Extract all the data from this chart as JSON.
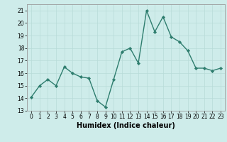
{
  "x": [
    0,
    1,
    2,
    3,
    4,
    5,
    6,
    7,
    8,
    9,
    10,
    11,
    12,
    13,
    14,
    15,
    16,
    17,
    18,
    19,
    20,
    21,
    22,
    23
  ],
  "y": [
    14.1,
    15.0,
    15.5,
    15.0,
    16.5,
    16.0,
    15.7,
    15.6,
    13.8,
    13.3,
    15.5,
    17.7,
    18.0,
    16.8,
    21.0,
    19.3,
    20.5,
    18.9,
    18.5,
    17.8,
    16.4,
    16.4,
    16.2,
    16.4
  ],
  "line_color": "#2e7d6e",
  "marker": "D",
  "marker_size": 2.2,
  "line_width": 1.0,
  "background_color": "#ceecea",
  "grid_color": "#b8dbd8",
  "xlabel": "Humidex (Indice chaleur)",
  "xlim": [
    -0.5,
    23.5
  ],
  "ylim": [
    13,
    21.5
  ],
  "yticks": [
    13,
    14,
    15,
    16,
    17,
    18,
    19,
    20,
    21
  ],
  "xticks": [
    0,
    1,
    2,
    3,
    4,
    5,
    6,
    7,
    8,
    9,
    10,
    11,
    12,
    13,
    14,
    15,
    16,
    17,
    18,
    19,
    20,
    21,
    22,
    23
  ],
  "tick_fontsize": 5.5,
  "label_fontsize": 7.0,
  "spine_color": "#999999"
}
